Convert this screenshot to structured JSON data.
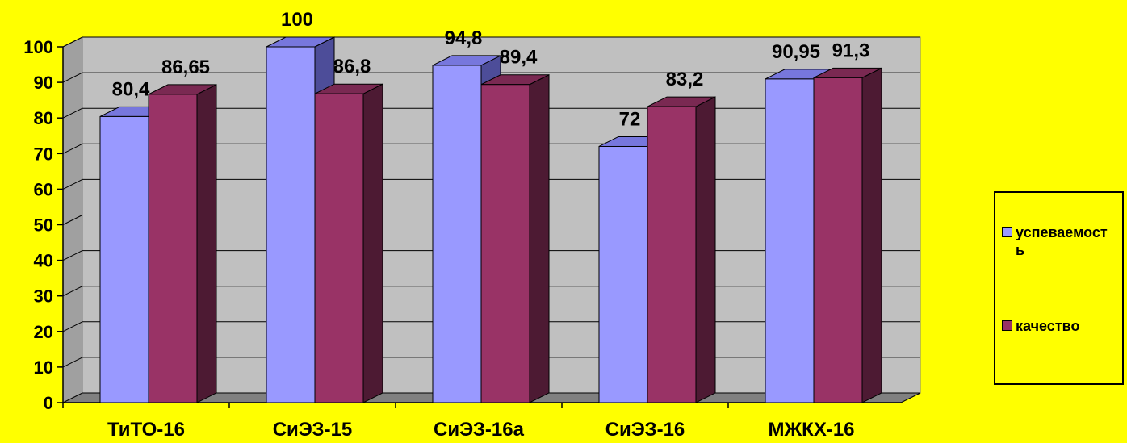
{
  "chart_data": {
    "type": "bar",
    "categories": [
      "ТиТО-16",
      "СиЭЗ-15",
      "СиЭЗ-16а",
      "СиЭЗ-16",
      "МЖКХ-16"
    ],
    "series": [
      {
        "name": "успеваемость",
        "values": [
          80.4,
          100,
          94.8,
          72,
          90.95
        ],
        "labels": [
          "80,4",
          "100",
          "94,8",
          "72",
          "90,95"
        ]
      },
      {
        "name": "качество",
        "values": [
          86.65,
          86.8,
          89.4,
          83.2,
          91.3
        ],
        "labels": [
          "86,65",
          "86,8",
          "89,4",
          "83,2",
          "91,3"
        ]
      }
    ],
    "ylim": [
      0,
      100
    ],
    "yticks": [
      "0",
      "10",
      "20",
      "30",
      "40",
      "50",
      "60",
      "70",
      "80",
      "90",
      "100"
    ],
    "grid": true,
    "three_d": true,
    "legend_position": "right",
    "colors": {
      "background": "#ffff00",
      "plot_back_wall": "#c0c0c0",
      "plot_floor": "#808080",
      "series_1_front": "#9999ff",
      "series_1_top": "#7777dd",
      "series_1_side": "#4d4d99",
      "series_2_front": "#993366",
      "series_2_top": "#7a2952",
      "series_2_side": "#4d1a33"
    }
  }
}
